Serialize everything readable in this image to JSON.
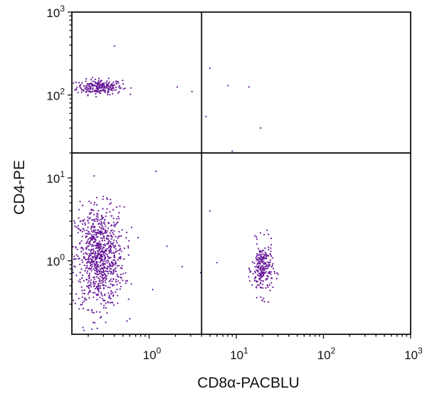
{
  "chart_data": {
    "type": "scatter",
    "xlabel": "CD8α-PACBLU",
    "ylabel": "CD4-PE",
    "x_scale": "log",
    "y_scale": "log",
    "xlim": [
      0.13,
      1000
    ],
    "ylim": [
      0.13,
      1000
    ],
    "x_ticks": [
      {
        "base": "10",
        "exp": "0",
        "value": 1
      },
      {
        "base": "10",
        "exp": "1",
        "value": 10
      },
      {
        "base": "10",
        "exp": "2",
        "value": 100
      },
      {
        "base": "10",
        "exp": "3",
        "value": 1000
      }
    ],
    "y_ticks": [
      {
        "base": "10",
        "exp": "0",
        "value": 1
      },
      {
        "base": "10",
        "exp": "1",
        "value": 10
      },
      {
        "base": "10",
        "exp": "2",
        "value": 100
      },
      {
        "base": "10",
        "exp": "3",
        "value": 1000
      }
    ],
    "quadrant_gate": {
      "x": 4,
      "y": 20
    },
    "point_color": "#6a1b9a",
    "grid": false,
    "populations": [
      {
        "count": 240,
        "x_center": 0.27,
        "y_center": 125,
        "x_spread_decades": 0.13,
        "y_spread_decades": 0.045
      },
      {
        "count": 900,
        "x_center": 0.27,
        "y_center": 1.1,
        "x_spread_decades": 0.14,
        "y_spread_decades": 0.3
      },
      {
        "count": 240,
        "x_center": 20,
        "y_center": 0.8,
        "x_spread_decades": 0.06,
        "y_spread_decades": 0.16
      }
    ],
    "outliers": [
      {
        "x": 0.4,
        "y": 390
      },
      {
        "x": 5,
        "y": 210
      },
      {
        "x": 8,
        "y": 130
      },
      {
        "x": 14,
        "y": 125
      },
      {
        "x": 4.5,
        "y": 55
      },
      {
        "x": 19,
        "y": 40
      },
      {
        "x": 9,
        "y": 21
      },
      {
        "x": 1.2,
        "y": 12
      },
      {
        "x": 1.6,
        "y": 1.5
      },
      {
        "x": 2.4,
        "y": 0.85
      },
      {
        "x": 1.1,
        "y": 0.45
      },
      {
        "x": 5,
        "y": 4
      },
      {
        "x": 3.9,
        "y": 0.72
      },
      {
        "x": 6,
        "y": 0.95
      },
      {
        "x": 2.1,
        "y": 125
      },
      {
        "x": 3.1,
        "y": 110
      },
      {
        "x": 0.6,
        "y": 0.2
      },
      {
        "x": 0.22,
        "y": 0.15
      }
    ]
  }
}
